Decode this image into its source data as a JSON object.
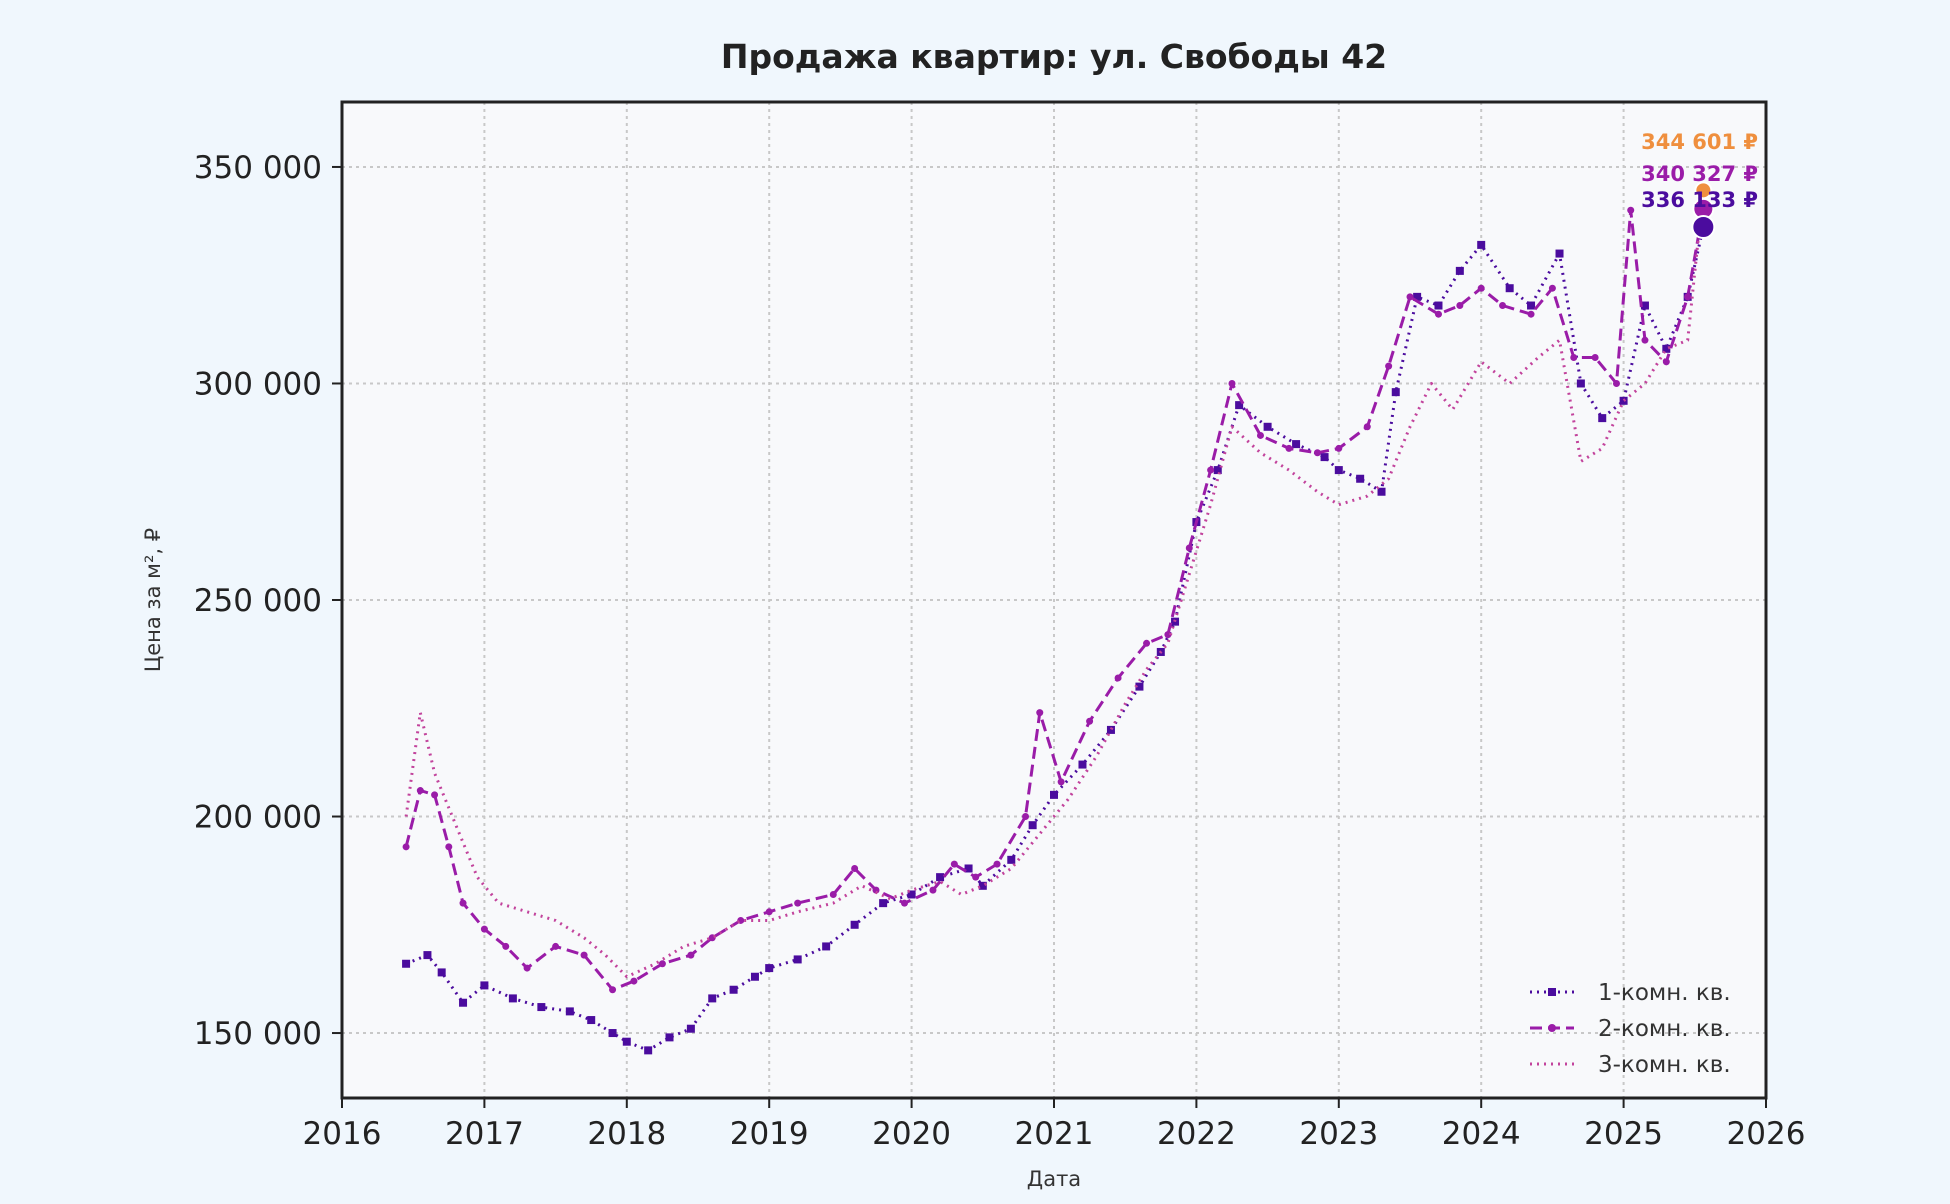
{
  "chart_data": {
    "type": "line",
    "title": "Продажа квартир: ул. Свободы 42",
    "xlabel": "Дата",
    "ylabel": "Цена за м², ₽",
    "xlim": [
      2016,
      2026
    ],
    "ylim": [
      135000,
      365000
    ],
    "xticks": [
      2016,
      2017,
      2018,
      2019,
      2020,
      2021,
      2022,
      2023,
      2024,
      2025,
      2026
    ],
    "xtick_labels": [
      "2016",
      "2017",
      "2018",
      "2019",
      "2020",
      "2021",
      "2022",
      "2023",
      "2024",
      "2025",
      "2026"
    ],
    "yticks": [
      150000,
      200000,
      250000,
      300000,
      350000
    ],
    "ytick_labels": [
      "150 000",
      "200 000",
      "250 000",
      "300 000",
      "350 000"
    ],
    "grid": true,
    "legend_position": "bottom-right",
    "series": [
      {
        "name": "1-комн. кв.",
        "color": "#4b0c9e",
        "dash": "dotted",
        "marker": "square",
        "end_value": 336133,
        "end_label": "336 133 ₽",
        "x": [
          2016.45,
          2016.6,
          2016.7,
          2016.85,
          2017.0,
          2017.2,
          2017.4,
          2017.6,
          2017.75,
          2017.9,
          2018.0,
          2018.15,
          2018.3,
          2018.45,
          2018.6,
          2018.75,
          2018.9,
          2019.0,
          2019.2,
          2019.4,
          2019.6,
          2019.8,
          2020.0,
          2020.2,
          2020.4,
          2020.5,
          2020.7,
          2020.85,
          2021.0,
          2021.2,
          2021.4,
          2021.6,
          2021.75,
          2021.85,
          2022.0,
          2022.15,
          2022.3,
          2022.5,
          2022.7,
          2022.9,
          2023.0,
          2023.15,
          2023.3,
          2023.4,
          2023.55,
          2023.7,
          2023.85,
          2024.0,
          2024.2,
          2024.35,
          2024.55,
          2024.7,
          2024.85,
          2025.0,
          2025.15,
          2025.3,
          2025.45,
          2025.56
        ],
        "values": [
          166000,
          168000,
          164000,
          157000,
          161000,
          158000,
          156000,
          155000,
          153000,
          150000,
          148000,
          146000,
          149000,
          151000,
          158000,
          160000,
          163000,
          165000,
          167000,
          170000,
          175000,
          180000,
          182000,
          186000,
          188000,
          184000,
          190000,
          198000,
          205000,
          212000,
          220000,
          230000,
          238000,
          245000,
          268000,
          280000,
          295000,
          290000,
          286000,
          283000,
          280000,
          278000,
          275000,
          298000,
          320000,
          318000,
          326000,
          332000,
          322000,
          318000,
          330000,
          300000,
          292000,
          296000,
          318000,
          308000,
          320000,
          336133
        ]
      },
      {
        "name": "2-комн. кв.",
        "color": "#9a1ca8",
        "dash": "dashed",
        "marker": "circle",
        "end_value": 340327,
        "end_label": "340 327 ₽",
        "x": [
          2016.45,
          2016.55,
          2016.65,
          2016.75,
          2016.85,
          2017.0,
          2017.15,
          2017.3,
          2017.5,
          2017.7,
          2017.9,
          2018.05,
          2018.25,
          2018.45,
          2018.6,
          2018.8,
          2019.0,
          2019.2,
          2019.45,
          2019.6,
          2019.75,
          2019.95,
          2020.15,
          2020.3,
          2020.45,
          2020.6,
          2020.8,
          2020.9,
          2021.05,
          2021.25,
          2021.45,
          2021.65,
          2021.8,
          2021.95,
          2022.1,
          2022.25,
          2022.45,
          2022.65,
          2022.85,
          2023.0,
          2023.2,
          2023.35,
          2023.5,
          2023.7,
          2023.85,
          2024.0,
          2024.15,
          2024.35,
          2024.5,
          2024.65,
          2024.8,
          2024.95,
          2025.05,
          2025.15,
          2025.3,
          2025.45,
          2025.56
        ],
        "values": [
          193000,
          206000,
          205000,
          193000,
          180000,
          174000,
          170000,
          165000,
          170000,
          168000,
          160000,
          162000,
          166000,
          168000,
          172000,
          176000,
          178000,
          180000,
          182000,
          188000,
          183000,
          180000,
          183000,
          189000,
          186000,
          189000,
          200000,
          224000,
          208000,
          222000,
          232000,
          240000,
          242000,
          262000,
          280000,
          300000,
          288000,
          285000,
          284000,
          285000,
          290000,
          304000,
          320000,
          316000,
          318000,
          322000,
          318000,
          316000,
          322000,
          306000,
          306000,
          300000,
          340000,
          310000,
          305000,
          320000,
          340327
        ]
      },
      {
        "name": "3-комн. кв.",
        "color": "#c2439c",
        "dash": "dotted",
        "marker": "none",
        "end_value": 344601,
        "end_label": "344 601 ₽",
        "x": [
          2016.45,
          2016.55,
          2016.65,
          2016.8,
          2016.95,
          2017.1,
          2017.3,
          2017.5,
          2017.7,
          2017.85,
          2018.0,
          2018.2,
          2018.4,
          2018.6,
          2018.8,
          2019.0,
          2019.2,
          2019.45,
          2019.65,
          2019.85,
          2020.0,
          2020.2,
          2020.35,
          2020.5,
          2020.7,
          2020.9,
          2021.1,
          2021.3,
          2021.5,
          2021.65,
          2021.8,
          2021.95,
          2022.1,
          2022.25,
          2022.45,
          2022.65,
          2022.85,
          2023.0,
          2023.2,
          2023.35,
          2023.5,
          2023.65,
          2023.8,
          2024.0,
          2024.2,
          2024.4,
          2024.55,
          2024.7,
          2024.85,
          2025.0,
          2025.15,
          2025.3,
          2025.45,
          2025.56
        ],
        "values": [
          200000,
          224000,
          210000,
          198000,
          186000,
          180000,
          178000,
          176000,
          172000,
          168000,
          163000,
          166000,
          170000,
          172000,
          176000,
          176000,
          178000,
          180000,
          184000,
          181000,
          183000,
          185000,
          182000,
          184000,
          188000,
          196000,
          204000,
          214000,
          226000,
          234000,
          240000,
          256000,
          272000,
          290000,
          284000,
          280000,
          275000,
          272000,
          274000,
          278000,
          290000,
          300000,
          294000,
          305000,
          300000,
          306000,
          310000,
          282000,
          285000,
          296000,
          300000,
          308000,
          310000,
          344601
        ]
      }
    ]
  }
}
